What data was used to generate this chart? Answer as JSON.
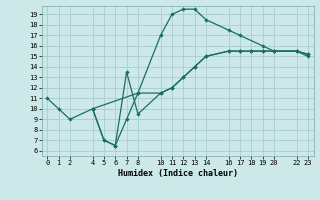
{
  "xlabel": "Humidex (Indice chaleur)",
  "bg_color": "#cce8e8",
  "line_color": "#1a6e66",
  "grid_color": "#aacccc",
  "xlim": [
    -0.5,
    23.5
  ],
  "ylim": [
    5.5,
    19.8
  ],
  "xticks": [
    0,
    1,
    2,
    4,
    5,
    6,
    7,
    8,
    10,
    11,
    12,
    13,
    14,
    16,
    17,
    18,
    19,
    20,
    22,
    23
  ],
  "yticks": [
    6,
    7,
    8,
    9,
    10,
    11,
    12,
    13,
    14,
    15,
    16,
    17,
    18,
    19
  ],
  "series1_x": [
    0,
    1,
    2,
    4,
    5,
    6,
    7,
    8,
    10,
    11,
    12,
    13,
    14,
    16,
    17,
    19,
    20,
    22,
    23
  ],
  "series1_y": [
    11,
    10,
    9,
    10,
    7,
    6.5,
    9,
    11.5,
    17,
    19,
    19.5,
    19.5,
    18.5,
    17.5,
    17,
    16,
    15.5,
    15.5,
    15
  ],
  "series2_x": [
    4,
    5,
    6,
    7,
    8,
    10,
    11,
    12,
    13,
    14,
    16,
    17,
    18,
    19,
    20,
    22,
    23
  ],
  "series2_y": [
    10,
    7,
    6.5,
    13.5,
    9.5,
    11.5,
    12,
    13,
    14,
    15,
    15.5,
    15.5,
    15.5,
    15.5,
    15.5,
    15.5,
    15.2
  ],
  "series3_x": [
    4,
    8,
    10,
    11,
    12,
    13,
    14,
    16,
    17,
    18,
    19,
    20,
    22,
    23
  ],
  "series3_y": [
    10,
    11.5,
    11.5,
    12,
    13,
    14,
    15,
    15.5,
    15.5,
    15.5,
    15.5,
    15.5,
    15.5,
    15.2
  ],
  "tick_fontsize": 5.0,
  "xlabel_fontsize": 6.0
}
